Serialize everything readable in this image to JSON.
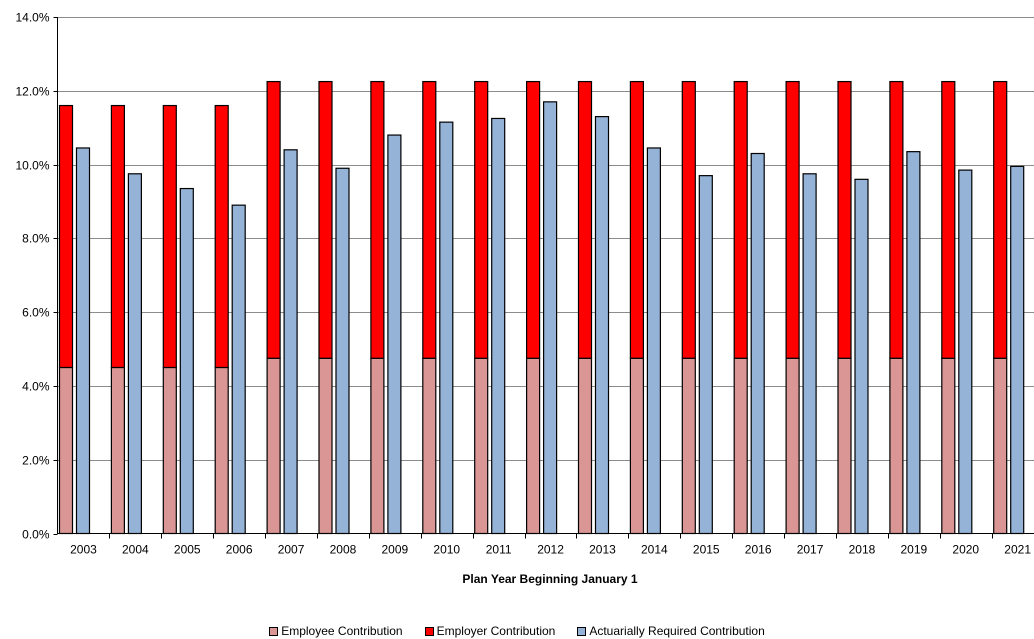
{
  "chart_data": {
    "type": "bar",
    "subtype": "stacked-and-grouped",
    "title": "",
    "xlabel": "Plan Year Beginning January 1",
    "ylabel": "",
    "ylim": [
      0,
      14
    ],
    "ytick_values": [
      0,
      2,
      4,
      6,
      8,
      10,
      12,
      14
    ],
    "ytick_labels": [
      "0.0%",
      "2.0%",
      "4.0%",
      "6.0%",
      "8.0%",
      "10.0%",
      "12.0%",
      "14.0%"
    ],
    "grid": "horizontal",
    "legend_position": "bottom",
    "categories": [
      "2003",
      "2004",
      "2005",
      "2006",
      "2007",
      "2008",
      "2009",
      "2010",
      "2011",
      "2012",
      "2013",
      "2014",
      "2015",
      "2016",
      "2017",
      "2018",
      "2019",
      "2020",
      "2021"
    ],
    "series": [
      {
        "name": "Employee Contribution",
        "stack": "contribution",
        "color": "#d99694",
        "values": [
          4.5,
          4.5,
          4.5,
          4.5,
          4.75,
          4.75,
          4.75,
          4.75,
          4.75,
          4.75,
          4.75,
          4.75,
          4.75,
          4.75,
          4.75,
          4.75,
          4.75,
          4.75,
          4.75
        ]
      },
      {
        "name": "Employer Contribution",
        "stack": "contribution",
        "color": "#ff0000",
        "values": [
          7.1,
          7.1,
          7.1,
          7.1,
          7.5,
          7.5,
          7.5,
          7.5,
          7.5,
          7.5,
          7.5,
          7.5,
          7.5,
          7.5,
          7.5,
          7.5,
          7.5,
          7.5,
          7.5
        ]
      },
      {
        "name": "Actuarially Required Contribution",
        "stack": "required",
        "color": "#95b3d7",
        "values": [
          10.45,
          9.75,
          9.35,
          8.9,
          10.4,
          9.9,
          10.8,
          11.15,
          11.25,
          11.7,
          11.3,
          10.45,
          9.7,
          10.3,
          9.75,
          9.6,
          10.35,
          9.85,
          9.95
        ]
      }
    ]
  }
}
